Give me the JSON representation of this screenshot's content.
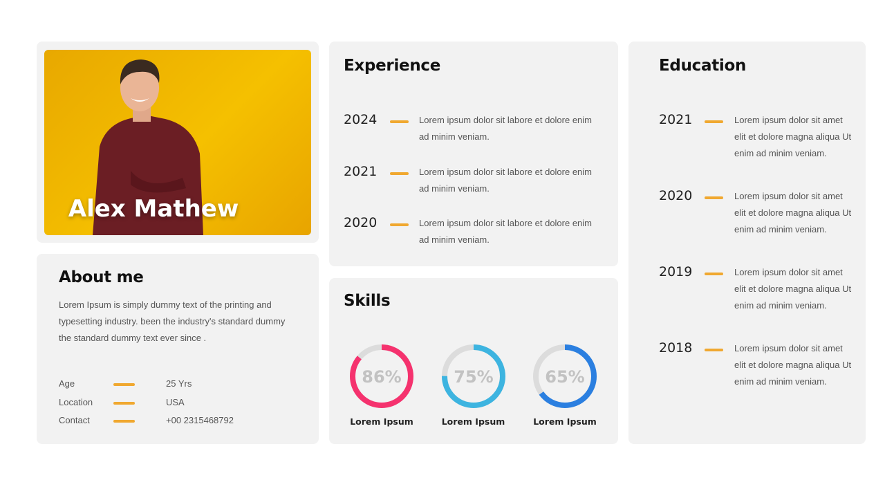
{
  "profile": {
    "name": "Alex Mathew",
    "photo_bg": "#f0b400"
  },
  "about": {
    "title": "About me",
    "text": "Lorem Ipsum is simply dummy text of the printing  and typesetting industry.  been the industry's  standard dummy the standard dummy  text ever since .",
    "details": [
      {
        "label": "Age",
        "value": "25 Yrs"
      },
      {
        "label": "Location",
        "value": "USA"
      },
      {
        "label": "Contact",
        "value": "+00 2315468792"
      }
    ]
  },
  "experience": {
    "title": "Experience",
    "items": [
      {
        "year": "2024",
        "text": "Lorem ipsum dolor  sit labore et dolore enim ad minim veniam."
      },
      {
        "year": "2021",
        "text": "Lorem ipsum dolor  sit labore et dolore enim ad minim veniam."
      },
      {
        "year": "2020",
        "text": "Lorem ipsum dolor  sit labore et dolore enim ad minim veniam."
      }
    ]
  },
  "skills": {
    "title": "Skills",
    "items": [
      {
        "percent": 86,
        "label_pct": "86%",
        "label": "Lorem Ipsum",
        "color": "#f5326e"
      },
      {
        "percent": 75,
        "label_pct": "75%",
        "label": "Lorem Ipsum",
        "color": "#3db4e0"
      },
      {
        "percent": 65,
        "label_pct": "65%",
        "label": "Lorem Ipsum",
        "color": "#2b7fe0"
      }
    ]
  },
  "education": {
    "title": "Education",
    "items": [
      {
        "year": "2021",
        "text": "Lorem ipsum dolor  sit amet elit et dolore magna aliqua Ut enim ad minim veniam."
      },
      {
        "year": "2020",
        "text": "Lorem ipsum dolor  sit amet elit et dolore magna aliqua Ut enim ad minim veniam."
      },
      {
        "year": "2019",
        "text": "Lorem ipsum dolor  sit amet elit et dolore magna aliqua Ut enim ad minim veniam."
      },
      {
        "year": "2018",
        "text": "Lorem ipsum dolor  sit amet elit et dolore magna aliqua Ut enim ad minim veniam."
      }
    ]
  },
  "accent": "#f0a830"
}
